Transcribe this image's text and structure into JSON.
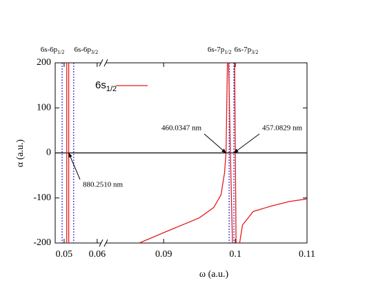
{
  "chart_data": {
    "type": "line",
    "xlabel": "ω  (a.u.)",
    "ylabel": "α  (a.u.)",
    "xlim": [
      0.0473,
      0.11
    ],
    "x_break": [
      0.0615,
      0.0818
    ],
    "ylim": [
      -200,
      200
    ],
    "xticks": [
      0.05,
      0.06,
      0.09,
      0.1,
      0.11
    ],
    "yticks": [
      -200,
      -100,
      0,
      100,
      200
    ],
    "legend": "upper left",
    "series": [
      {
        "name": "6s",
        "name_sub": "1/2",
        "color": "#e41a1c",
        "x": [
          0.0508,
          0.0508,
          null,
          0.0514,
          0.0514,
          null,
          0.0866,
          0.09,
          0.095,
          0.097,
          0.098,
          0.0985,
          0.0987,
          0.0989,
          null,
          0.09906,
          0.0993,
          0.0996,
          null,
          0.0999,
          0.1001,
          null,
          0.1006,
          0.101,
          0.1025,
          0.105,
          0.1075,
          0.11
        ],
        "values": [
          200,
          -200,
          null,
          200,
          -200,
          null,
          -200,
          -177,
          -144,
          -121,
          -93,
          -44,
          0,
          200,
          null,
          200,
          10,
          -200,
          null,
          200,
          -200,
          null,
          -200,
          -160,
          -130,
          -118,
          -108,
          -102
        ]
      }
    ],
    "resonances": [
      {
        "label": "6s-6p",
        "sub": "1/2",
        "x": 0.0494,
        "color": "#2222cc"
      },
      {
        "label": "6s-6p",
        "sub": "3/2",
        "x": 0.0529,
        "color": "#2222cc"
      },
      {
        "label": "6s-7p",
        "sub": "1/2",
        "x": 0.09914,
        "color": "#2222cc"
      },
      {
        "label": "6s-7p",
        "sub": "3/2",
        "x": 0.0998,
        "color": "#2222cc"
      }
    ],
    "annotations": [
      {
        "text": "880.2510 nm",
        "x": 0.0514,
        "y": 0
      },
      {
        "text": "460.0347 nm",
        "x": 0.0987,
        "y": 0
      },
      {
        "text": "457.0829 nm",
        "x": 0.0998,
        "y": 0
      }
    ]
  }
}
